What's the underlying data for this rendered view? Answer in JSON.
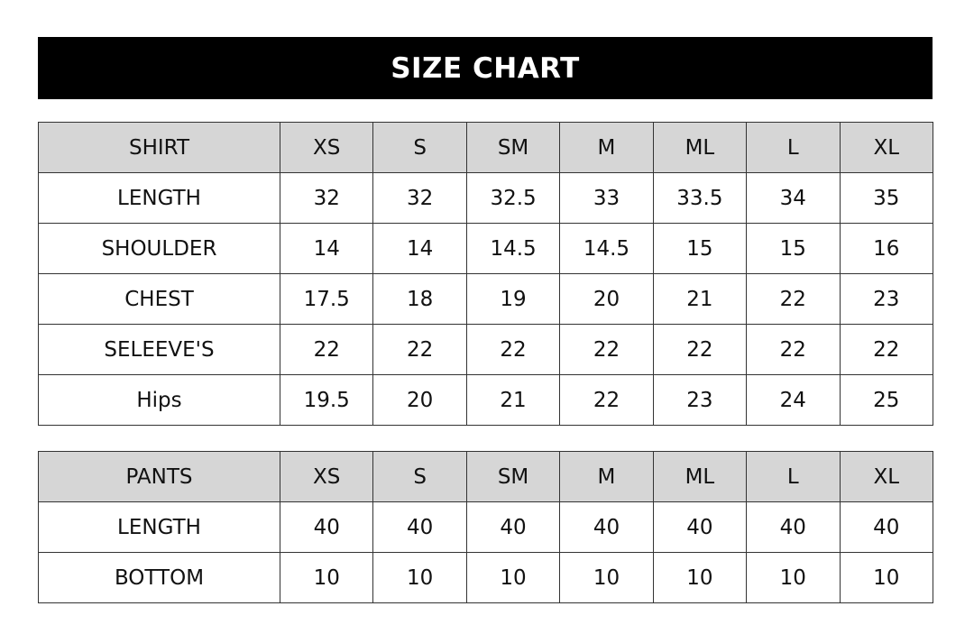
{
  "title": "SIZE CHART",
  "shirt": {
    "header": [
      "SHIRT",
      "XS",
      "S",
      "SM",
      "M",
      "ML",
      "L",
      "XL"
    ],
    "rows": [
      [
        "LENGTH",
        "32",
        "32",
        "32.5",
        "33",
        "33.5",
        "34",
        "35"
      ],
      [
        "SHOULDER",
        "14",
        "14",
        "14.5",
        "14.5",
        "15",
        "15",
        "16"
      ],
      [
        "CHEST",
        "17.5",
        "18",
        "19",
        "20",
        "21",
        "22",
        "23"
      ],
      [
        "SELEEVE'S",
        "22",
        "22",
        "22",
        "22",
        "22",
        "22",
        "22"
      ],
      [
        "Hips",
        "19.5",
        "20",
        "21",
        "22",
        "23",
        "24",
        "25"
      ]
    ]
  },
  "pants": {
    "header": [
      "PANTS",
      "XS",
      "S",
      "SM",
      "M",
      "ML",
      "L",
      "XL"
    ],
    "rows": [
      [
        "LENGTH",
        "40",
        "40",
        "40",
        "40",
        "40",
        "40",
        "40"
      ],
      [
        "BOTTOM",
        "10",
        "10",
        "10",
        "10",
        "10",
        "10",
        "10"
      ]
    ]
  },
  "colors": {
    "title_bg": "#000000",
    "header_bg": "#d6d6d6",
    "border": "#333333"
  }
}
